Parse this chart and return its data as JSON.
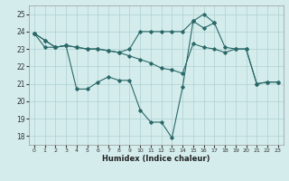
{
  "line1": {
    "x": [
      0,
      1,
      2,
      3,
      4,
      5,
      6,
      7,
      8,
      9,
      10,
      11,
      12,
      13,
      14,
      15,
      16,
      17,
      18,
      19,
      20,
      21,
      22,
      23
    ],
    "y": [
      23.9,
      23.5,
      23.1,
      23.2,
      23.1,
      23.0,
      23.0,
      22.9,
      22.8,
      23.0,
      24.0,
      24.0,
      24.0,
      24.0,
      24.0,
      24.6,
      25.0,
      24.5,
      23.1,
      23.0,
      23.0,
      21.0,
      21.1,
      21.1
    ]
  },
  "line2": {
    "x": [
      0,
      1,
      2,
      3,
      4,
      5,
      6,
      7,
      8,
      9,
      10,
      11,
      12,
      13,
      14,
      15,
      16,
      17,
      18,
      19,
      20,
      21,
      22,
      23
    ],
    "y": [
      23.9,
      23.1,
      23.1,
      23.2,
      23.1,
      23.0,
      23.0,
      22.9,
      22.8,
      22.6,
      22.4,
      22.2,
      21.9,
      21.8,
      21.6,
      23.3,
      23.1,
      23.0,
      22.8,
      23.0,
      23.0,
      21.0,
      21.1,
      21.1
    ]
  },
  "line3": {
    "x": [
      0,
      1,
      2,
      3,
      4,
      5,
      6,
      7,
      8,
      9,
      10,
      11,
      12,
      13,
      14,
      15,
      16,
      17
    ],
    "y": [
      23.9,
      23.5,
      23.1,
      23.2,
      20.7,
      20.7,
      21.1,
      21.4,
      21.2,
      21.2,
      19.5,
      18.8,
      18.8,
      17.9,
      20.8,
      24.6,
      24.2,
      24.5
    ]
  },
  "bg_color": "#d4ecec",
  "grid_color": "#b0d0d0",
  "line_color": "#2a6868",
  "xlabel": "Humidex (Indice chaleur)",
  "xlim": [
    -0.5,
    23.5
  ],
  "ylim": [
    17.5,
    25.5
  ],
  "xticks": [
    0,
    1,
    2,
    3,
    4,
    5,
    6,
    7,
    8,
    9,
    10,
    11,
    12,
    13,
    14,
    15,
    16,
    17,
    18,
    19,
    20,
    21,
    22,
    23
  ],
  "yticks": [
    18,
    19,
    20,
    21,
    22,
    23,
    24,
    25
  ]
}
